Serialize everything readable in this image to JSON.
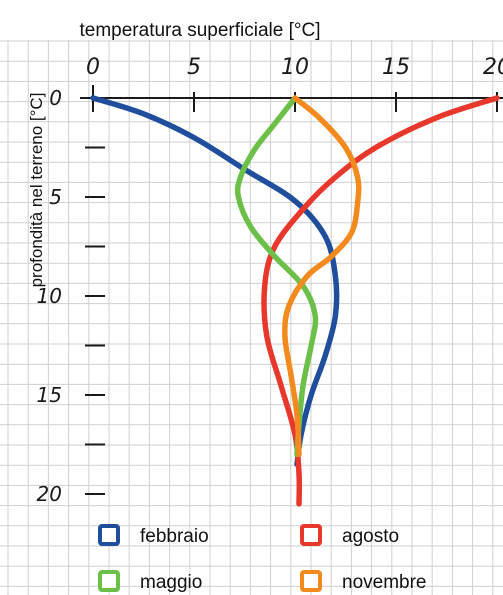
{
  "chart_data": {
    "type": "line",
    "title": "",
    "xlabel": "temperatura superficiale [°C]",
    "ylabel": "profondità nel terreno [°C]",
    "xlim": [
      0,
      20
    ],
    "ylim": [
      20,
      0
    ],
    "x_ticks": [
      0,
      5,
      10,
      15,
      20
    ],
    "x_tick_labels": [
      "0",
      "5",
      "10",
      "15",
      "20"
    ],
    "y_ticks": [
      0,
      5,
      10,
      15,
      20
    ],
    "y_tick_labels": [
      "0",
      "5",
      "10",
      "15",
      "20"
    ],
    "y_minor_ticks": [
      2.5,
      7.5,
      12.5,
      17.5
    ],
    "grid": true,
    "legend_position": "bottom",
    "series": [
      {
        "name": "febbraio",
        "color": "#1f4e9c",
        "points": [
          [
            0,
            0
          ],
          [
            2.5,
            0.8
          ],
          [
            5.0,
            2.0
          ],
          [
            7.5,
            3.6
          ],
          [
            10.0,
            5.2
          ],
          [
            11.5,
            7.0
          ],
          [
            12.0,
            9.0
          ],
          [
            12.0,
            11.0
          ],
          [
            11.5,
            13.0
          ],
          [
            10.8,
            15.0
          ],
          [
            10.3,
            17.0
          ],
          [
            10.1,
            18.5
          ]
        ]
      },
      {
        "name": "agosto",
        "color": "#e8382c",
        "points": [
          [
            20.0,
            0
          ],
          [
            17.0,
            1.0
          ],
          [
            14.0,
            2.5
          ],
          [
            12.0,
            4.0
          ],
          [
            10.5,
            5.5
          ],
          [
            9.0,
            7.5
          ],
          [
            8.5,
            9.5
          ],
          [
            8.6,
            12.0
          ],
          [
            9.3,
            14.5
          ],
          [
            10.0,
            17.0
          ],
          [
            10.2,
            19.0
          ],
          [
            10.2,
            20.5
          ]
        ]
      },
      {
        "name": "maggio",
        "color": "#6cc04a",
        "points": [
          [
            10.0,
            0
          ],
          [
            9.0,
            1.3
          ],
          [
            8.0,
            2.6
          ],
          [
            7.3,
            4.0
          ],
          [
            7.2,
            5.0
          ],
          [
            7.8,
            6.5
          ],
          [
            9.0,
            8.0
          ],
          [
            10.4,
            9.5
          ],
          [
            11.0,
            11.0
          ],
          [
            10.8,
            12.5
          ],
          [
            10.4,
            14.5
          ],
          [
            10.2,
            16.5
          ],
          [
            10.1,
            18.0
          ]
        ]
      },
      {
        "name": "novembre",
        "color": "#f28a1e",
        "points": [
          [
            10.0,
            0
          ],
          [
            11.2,
            1.0
          ],
          [
            12.5,
            2.5
          ],
          [
            13.1,
            4.0
          ],
          [
            13.1,
            5.3
          ],
          [
            12.8,
            6.8
          ],
          [
            11.8,
            8.0
          ],
          [
            10.6,
            9.0
          ],
          [
            9.7,
            10.5
          ],
          [
            9.5,
            12.0
          ],
          [
            9.8,
            14.0
          ],
          [
            10.1,
            16.0
          ],
          [
            10.2,
            18.0
          ]
        ]
      }
    ]
  }
}
